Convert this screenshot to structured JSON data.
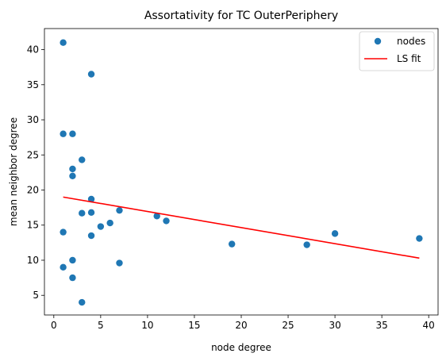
{
  "chart_data": {
    "type": "scatter",
    "title": "Assortativity for TC OuterPeriphery",
    "xlabel": "node degree",
    "ylabel": "mean neighbor degree",
    "xlim": [
      -1.0,
      41.0
    ],
    "ylim": [
      2.2,
      43.0
    ],
    "xticks": [
      0,
      5,
      10,
      15,
      20,
      25,
      30,
      35,
      40
    ],
    "yticks": [
      5,
      10,
      15,
      20,
      25,
      30,
      35,
      40
    ],
    "grid": false,
    "legend": {
      "placement": "top-right",
      "entries": [
        "nodes",
        "LS fit"
      ]
    },
    "series": [
      {
        "name": "nodes",
        "kind": "scatter",
        "color": "#1f77b4",
        "points": [
          [
            1,
            41.0
          ],
          [
            1,
            28.0
          ],
          [
            1,
            14.0
          ],
          [
            1,
            9.0
          ],
          [
            2,
            28.0
          ],
          [
            2,
            23.0
          ],
          [
            2,
            22.0
          ],
          [
            2,
            10.0
          ],
          [
            2,
            7.5
          ],
          [
            3,
            24.3
          ],
          [
            3,
            16.7
          ],
          [
            3,
            4.0
          ],
          [
            4,
            36.5
          ],
          [
            4,
            18.7
          ],
          [
            4,
            16.8
          ],
          [
            4,
            13.5
          ],
          [
            5,
            14.8
          ],
          [
            6,
            15.3
          ],
          [
            7,
            17.1
          ],
          [
            7,
            9.6
          ],
          [
            11,
            16.3
          ],
          [
            12,
            15.6
          ],
          [
            19,
            12.3
          ],
          [
            27,
            12.2
          ],
          [
            30,
            13.8
          ],
          [
            39,
            13.1
          ]
        ]
      },
      {
        "name": "LS fit",
        "kind": "line",
        "color": "#ff0000",
        "points": [
          [
            1,
            19.0
          ],
          [
            39,
            10.3
          ]
        ]
      }
    ]
  }
}
